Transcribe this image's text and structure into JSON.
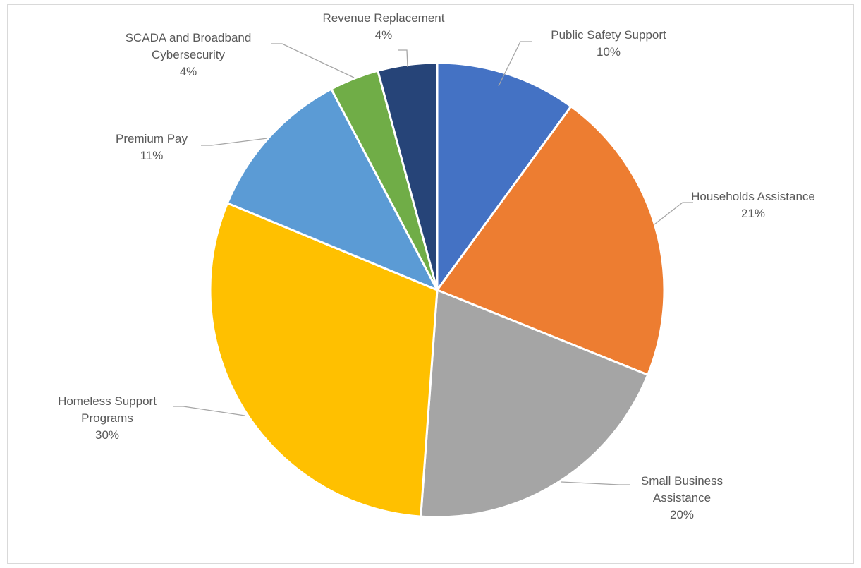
{
  "chart_data": {
    "type": "pie",
    "title": "",
    "slices": [
      {
        "label_lines": [
          "Public Safety Support"
        ],
        "pct_label": "10%",
        "value": 10,
        "color": "#4472C4"
      },
      {
        "label_lines": [
          "Households Assistance"
        ],
        "pct_label": "21%",
        "value": 21,
        "color": "#ED7D31"
      },
      {
        "label_lines": [
          "Small Business",
          "Assistance"
        ],
        "pct_label": "20%",
        "value": 20,
        "color": "#A5A5A5"
      },
      {
        "label_lines": [
          "Homeless Support",
          "Programs"
        ],
        "pct_label": "30%",
        "value": 30,
        "color": "#FFC000"
      },
      {
        "label_lines": [
          "Premium Pay"
        ],
        "pct_label": "11%",
        "value": 11,
        "color": "#5B9BD5"
      },
      {
        "label_lines": [
          "SCADA and Broadband",
          "Cybersecurity"
        ],
        "pct_label": "4%",
        "value": 3.5,
        "color": "#70AD47"
      },
      {
        "label_lines": [
          "Revenue Replacement"
        ],
        "pct_label": "4%",
        "value": 4.2,
        "color": "#264478"
      }
    ],
    "legend": "none",
    "data_labels": "outside-with-leader-lines"
  }
}
